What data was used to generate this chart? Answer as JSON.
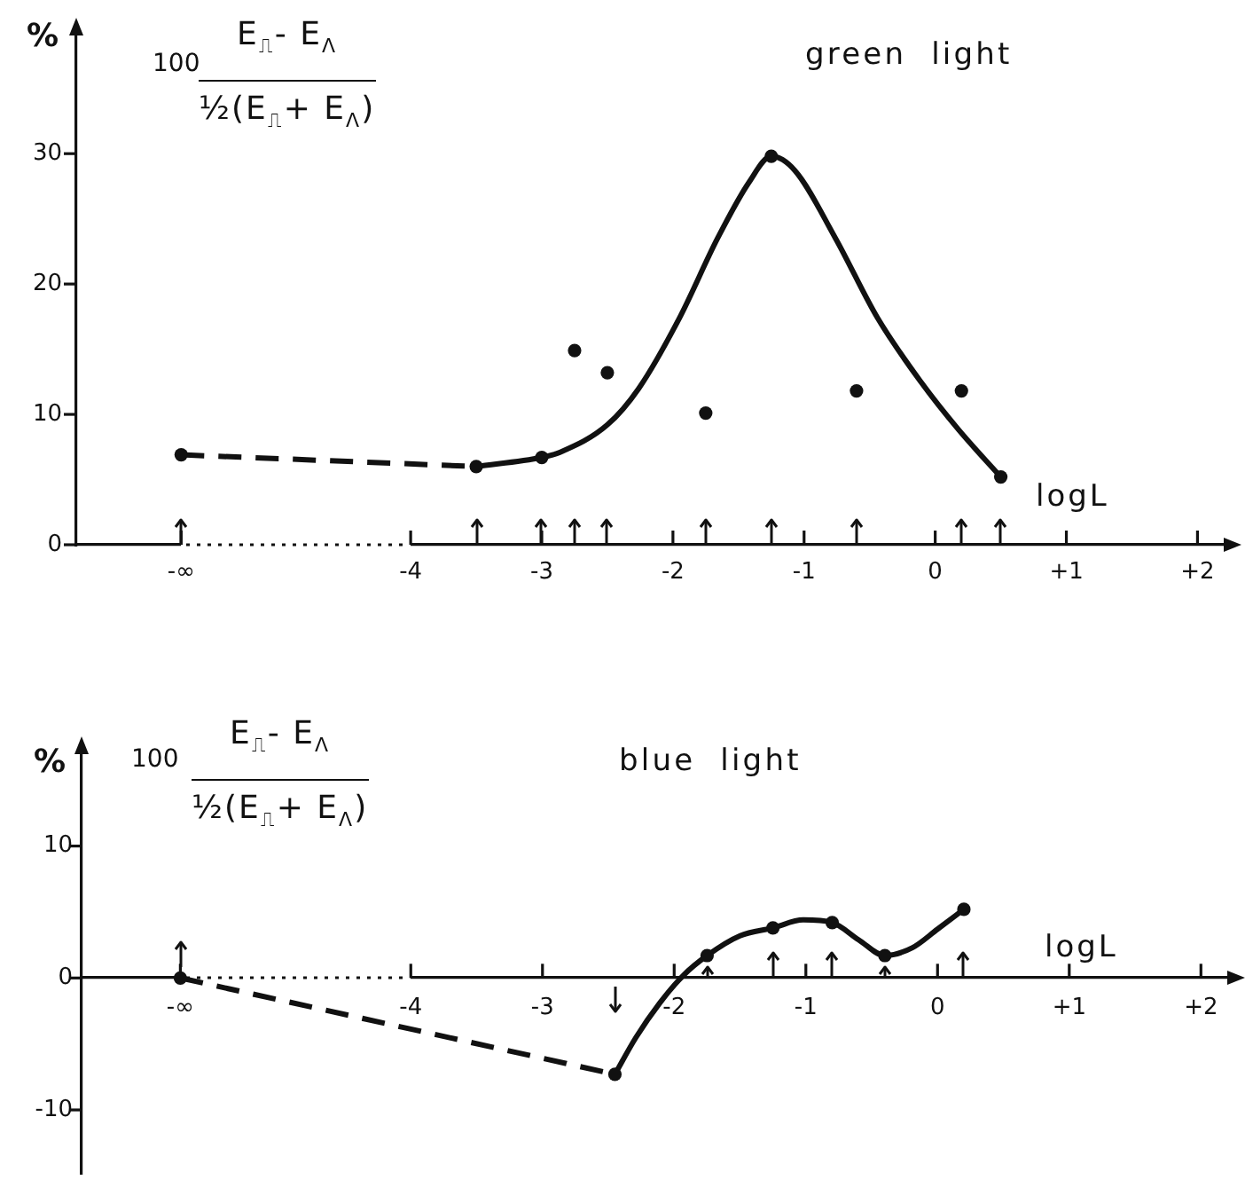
{
  "chart_data": [
    {
      "type": "line",
      "title": "green light",
      "xlabel": "logL",
      "ylabel": "%",
      "annotations": [
        "100",
        "E$_{⎍}$- E$_{Λ}$",
        "½(E$_{⎍}$+ E$_{Λ}$)"
      ],
      "xlim": [
        -6.55,
        2.2
      ],
      "xticks": [
        {
          "value": -5.75,
          "label": "-∞"
        },
        -4,
        -3,
        -2,
        -1,
        0,
        {
          "value": 1,
          "label": "+1"
        },
        {
          "value": 2,
          "label": "+2"
        }
      ],
      "ylim": [
        0,
        39.2
      ],
      "yticks": [
        0,
        10,
        20,
        30
      ],
      "grid": false,
      "legend": false,
      "series": [
        {
          "type": "line",
          "line_style": "dashed",
          "marker": "none",
          "color": "#111111",
          "x": [
            -5.75,
            -3.5
          ],
          "values": [
            6.9,
            6.0
          ]
        },
        {
          "type": "line",
          "line_style": "solid",
          "marker": "none",
          "color": "#111111",
          "x": [
            -3.5,
            -3.0,
            -2.86,
            -2.5,
            -2.26,
            -1.95,
            -1.66,
            -1.42,
            -1.25,
            -1.07,
            -0.76,
            -0.44,
            -0.11,
            0.18,
            0.5
          ],
          "values": [
            6.0,
            6.7,
            7.1,
            9.2,
            12.0,
            17.4,
            23.5,
            27.8,
            29.8,
            28.7,
            23.5,
            17.4,
            12.5,
            8.8,
            5.2
          ]
        },
        {
          "type": "scatter",
          "marker": "circle",
          "color": "#111111",
          "x": [
            -5.75,
            -3.5,
            -3.0,
            -2.75,
            -2.5,
            -1.75,
            -1.25,
            -0.6,
            0.2,
            0.5
          ],
          "values": [
            6.9,
            6.0,
            6.7,
            14.9,
            13.2,
            10.1,
            29.8,
            11.8,
            11.8,
            5.2
          ]
        }
      ]
    },
    {
      "type": "line",
      "title": "blue light",
      "xlabel": "logL",
      "ylabel": "%",
      "annotations": [
        "100",
        "E$_{⎍}$- E$_{Λ}$",
        "½(E$_{⎍}$+ E$_{Λ}$)"
      ],
      "xlim": [
        -6.5,
        2.2
      ],
      "xticks": [
        {
          "value": -5.75,
          "label": "-∞"
        },
        -4,
        -3,
        -2,
        -1,
        0,
        {
          "value": 1,
          "label": "+1"
        },
        {
          "value": 2,
          "label": "+2"
        }
      ],
      "ylim": [
        -14.8,
        17.1
      ],
      "yticks": [
        -10,
        0,
        10
      ],
      "grid": false,
      "legend": false,
      "series": [
        {
          "type": "line",
          "line_style": "dashed",
          "marker": "none",
          "color": "#111111",
          "x": [
            -5.75,
            -2.45
          ],
          "values": [
            0,
            -7.3
          ]
        },
        {
          "type": "line",
          "line_style": "solid",
          "marker": "none",
          "color": "#111111",
          "x": [
            -2.45,
            -2.29,
            -2.11,
            -1.93,
            -1.75,
            -1.5,
            -1.25,
            -1.02,
            -0.8,
            -0.6,
            -0.4,
            -0.19,
            0.0,
            0.2
          ],
          "values": [
            -7.3,
            -4.5,
            -1.9,
            0.2,
            1.7,
            3.2,
            3.8,
            4.4,
            4.2,
            2.9,
            1.7,
            2.3,
            3.7,
            5.2
          ]
        },
        {
          "type": "scatter",
          "marker": "circle",
          "color": "#111111",
          "x": [
            -5.75,
            -2.45,
            -1.75,
            -1.25,
            -0.8,
            -0.4,
            0.2
          ],
          "values": [
            0,
            -7.3,
            1.7,
            3.8,
            4.2,
            1.7,
            5.2
          ]
        }
      ]
    }
  ]
}
